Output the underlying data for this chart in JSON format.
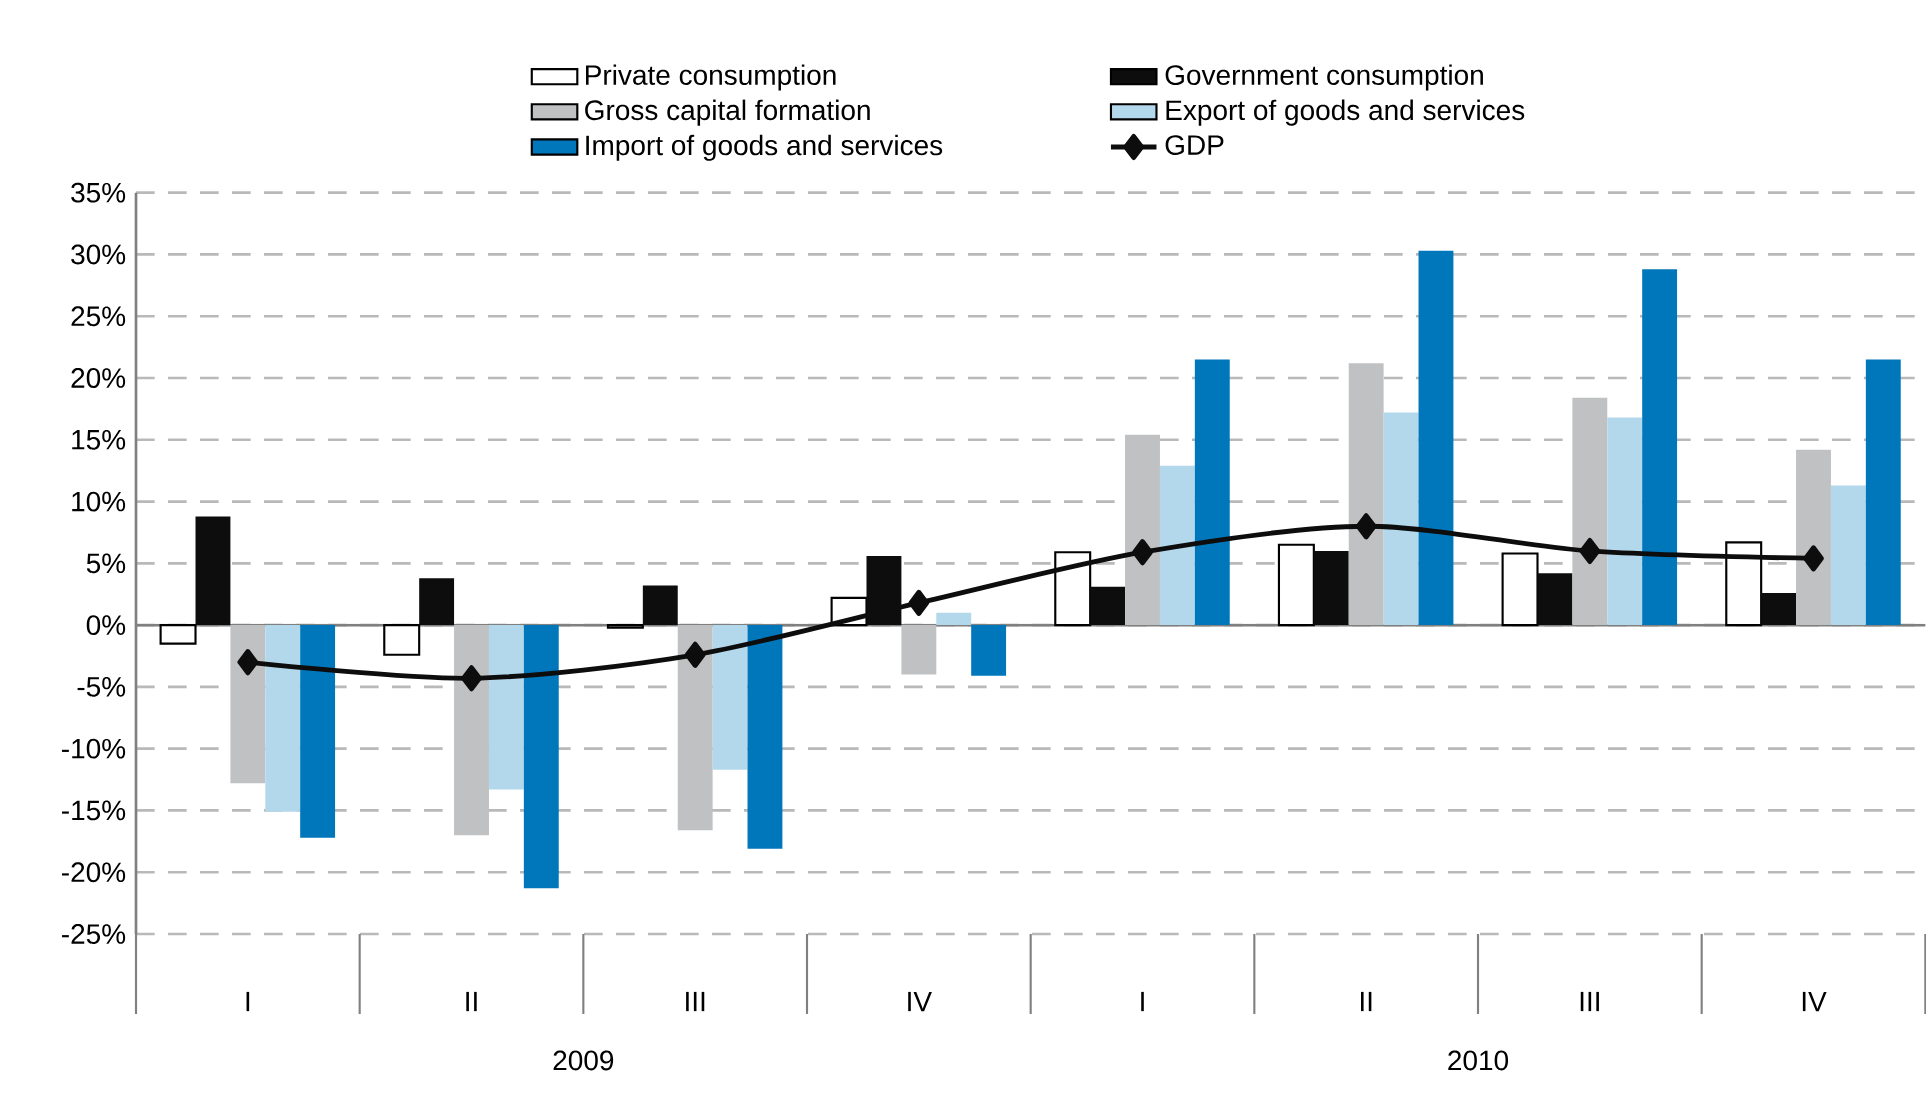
{
  "chart_data": {
    "type": "bar",
    "categories": [
      "I",
      "II",
      "III",
      "IV",
      "I",
      "II",
      "III",
      "IV"
    ],
    "series": [
      {
        "name": "Private consumption",
        "color": "#ffffff",
        "values": [
          -1.5,
          -2.4,
          -0.2,
          2.2,
          5.9,
          6.5,
          5.8,
          6.7
        ]
      },
      {
        "name": "Government consumption",
        "color": "#0d0d0d",
        "values": [
          8.8,
          3.8,
          3.2,
          5.6,
          3.1,
          6.0,
          4.2,
          2.6
        ]
      },
      {
        "name": "Gross capital formation",
        "color": "#c0c1c3",
        "values": [
          -12.8,
          -17.0,
          -16.6,
          -4.0,
          15.4,
          21.2,
          18.4,
          14.2
        ]
      },
      {
        "name": "Export of goods and services",
        "color": "#b3d8ec",
        "values": [
          -15.1,
          -13.3,
          -11.7,
          1.0,
          12.9,
          17.2,
          16.8,
          11.3
        ]
      },
      {
        "name": "Import of goods and services",
        "color": "#0077bb",
        "values": [
          -17.2,
          -21.3,
          -18.1,
          -4.1,
          21.5,
          30.3,
          28.8,
          21.5
        ]
      },
      {
        "name": "GDP",
        "color": "#0d0d0d",
        "type": "line",
        "marker": "diamond",
        "values": [
          -3.0,
          -4.3,
          -2.4,
          1.8,
          5.9,
          8.0,
          6.0,
          5.4
        ]
      }
    ],
    "ylim": [
      -25,
      35
    ],
    "yticks": [
      {
        "value": -25,
        "label": "-25%"
      },
      {
        "value": -20,
        "label": "-20%"
      },
      {
        "value": -15,
        "label": "-15%"
      },
      {
        "value": -10,
        "label": "-10%"
      },
      {
        "value": -5,
        "label": "-5%"
      },
      {
        "value": 0,
        "label": "0%"
      },
      {
        "value": 5,
        "label": "5%"
      },
      {
        "value": 10,
        "label": "10%"
      },
      {
        "value": 15,
        "label": "15%"
      },
      {
        "value": 20,
        "label": "20%"
      },
      {
        "value": 25,
        "label": "25%"
      },
      {
        "value": 30,
        "label": "30%"
      },
      {
        "value": 35,
        "label": "35%"
      }
    ],
    "grid": "y",
    "legend": "top",
    "annotations": [
      "2009",
      "2010"
    ]
  }
}
